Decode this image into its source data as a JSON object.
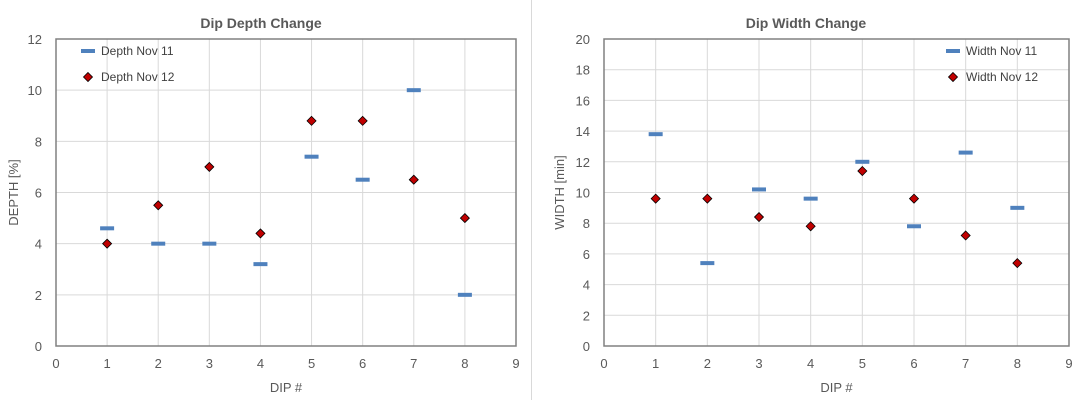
{
  "chart_data": [
    {
      "type": "scatter",
      "title": "Dip Depth Change",
      "xlabel": "DIP #",
      "ylabel": "DEPTH [%]",
      "xlim": [
        0,
        9
      ],
      "ylim": [
        0,
        12
      ],
      "xticks": [
        0,
        1,
        2,
        3,
        4,
        5,
        6,
        7,
        8,
        9
      ],
      "yticks": [
        0,
        2,
        4,
        6,
        8,
        10,
        12
      ],
      "grid": true,
      "legend_position": "top-left",
      "series": [
        {
          "name": "Depth Nov 11",
          "marker": "dash",
          "color": "#4f81bd",
          "x": [
            1,
            2,
            3,
            4,
            5,
            6,
            7,
            8
          ],
          "y": [
            4.6,
            4.0,
            4.0,
            3.2,
            7.4,
            6.5,
            10.0,
            2.0
          ]
        },
        {
          "name": "Depth Nov 12",
          "marker": "diamond",
          "color": "#c00000",
          "x": [
            1,
            2,
            3,
            4,
            5,
            6,
            7,
            8
          ],
          "y": [
            4.0,
            5.5,
            7.0,
            4.4,
            8.8,
            8.8,
            6.5,
            5.0
          ]
        }
      ]
    },
    {
      "type": "scatter",
      "title": "Dip Width Change",
      "xlabel": "DIP #",
      "ylabel": "WIDTH [min]",
      "xlim": [
        0,
        9
      ],
      "ylim": [
        0,
        20
      ],
      "xticks": [
        0,
        1,
        2,
        3,
        4,
        5,
        6,
        7,
        8,
        9
      ],
      "yticks": [
        0,
        2,
        4,
        6,
        8,
        10,
        12,
        14,
        16,
        18,
        20
      ],
      "grid": true,
      "legend_position": "top-right",
      "series": [
        {
          "name": "Width Nov 11",
          "marker": "dash",
          "color": "#4f81bd",
          "x": [
            1,
            2,
            3,
            4,
            5,
            6,
            7,
            8
          ],
          "y": [
            13.8,
            5.4,
            10.2,
            9.6,
            12.0,
            7.8,
            12.6,
            9.0
          ]
        },
        {
          "name": "Width Nov 12",
          "marker": "diamond",
          "color": "#c00000",
          "x": [
            1,
            2,
            3,
            4,
            5,
            6,
            7,
            8
          ],
          "y": [
            9.6,
            9.6,
            8.4,
            7.8,
            11.4,
            9.6,
            7.2,
            5.4
          ]
        }
      ]
    }
  ]
}
